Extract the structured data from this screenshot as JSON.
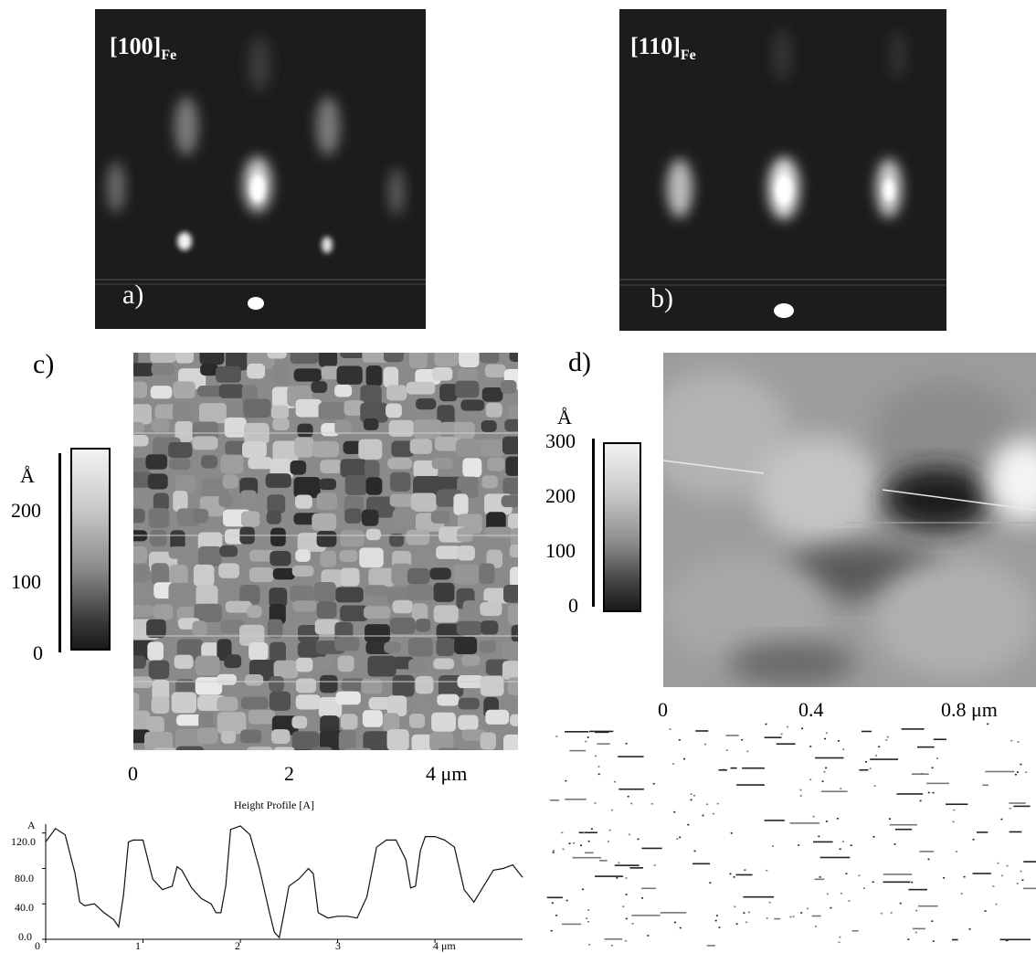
{
  "panel_a": {
    "label": "a)",
    "direction": "[100]",
    "direction_sub": "Fe"
  },
  "panel_b": {
    "label": "b)",
    "direction": "[110]",
    "direction_sub": "Fe"
  },
  "panel_c": {
    "label": "c)",
    "scale_unit": "Å",
    "scale_ticks": [
      "200",
      "100",
      "0"
    ],
    "x_ticks": [
      "0",
      "2",
      "4"
    ],
    "x_unit": "μm"
  },
  "panel_d": {
    "label": "d)",
    "scale_unit": "Å",
    "scale_ticks": [
      "300",
      "200",
      "100",
      "0"
    ],
    "x_ticks": [
      "0",
      "0.4",
      "0.8"
    ],
    "x_unit": "μm"
  },
  "profile": {
    "title": "Height Profile [A]",
    "y_unit": "A",
    "y_ticks": [
      "120.0",
      "80.0",
      "40.0",
      "0.0"
    ],
    "x_ticks": [
      "0",
      "1",
      "2",
      "3",
      "4"
    ],
    "x_unit": "μm"
  },
  "chart_data": {
    "type": "line",
    "title": "Height Profile [A]",
    "xlabel": "μm",
    "ylabel": "A",
    "xlim": [
      0,
      4.9
    ],
    "ylim": [
      0,
      130
    ],
    "x": [
      0,
      0.1,
      0.2,
      0.3,
      0.35,
      0.4,
      0.5,
      0.6,
      0.7,
      0.75,
      0.8,
      0.85,
      0.9,
      1.0,
      1.1,
      1.2,
      1.3,
      1.35,
      1.4,
      1.5,
      1.6,
      1.7,
      1.75,
      1.8,
      1.85,
      1.9,
      2.0,
      2.1,
      2.2,
      2.3,
      2.35,
      2.4,
      2.45,
      2.5,
      2.6,
      2.7,
      2.75,
      2.8,
      2.9,
      3.0,
      3.1,
      3.2,
      3.3,
      3.4,
      3.5,
      3.6,
      3.7,
      3.75,
      3.8,
      3.85,
      3.9,
      4.0,
      4.1,
      4.2,
      4.3,
      4.4,
      4.5,
      4.6,
      4.7,
      4.8,
      4.9
    ],
    "y": [
      110,
      125,
      118,
      75,
      42,
      38,
      40,
      30,
      22,
      14,
      50,
      110,
      112,
      112,
      68,
      56,
      60,
      82,
      78,
      58,
      46,
      40,
      30,
      30,
      60,
      124,
      128,
      118,
      78,
      30,
      8,
      2,
      30,
      60,
      68,
      80,
      74,
      30,
      24,
      26,
      26,
      24,
      48,
      104,
      112,
      112,
      90,
      58,
      60,
      100,
      116,
      116,
      112,
      104,
      56,
      42,
      60,
      78,
      80,
      84,
      70
    ]
  }
}
